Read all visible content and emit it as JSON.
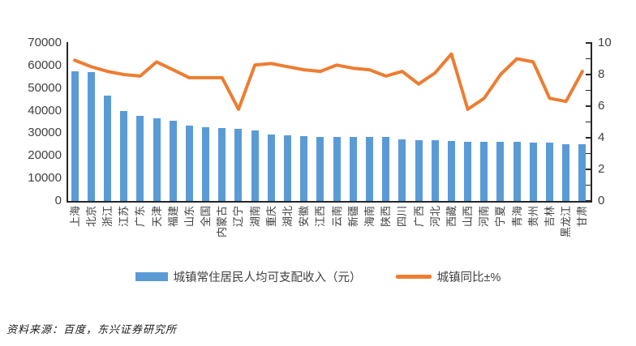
{
  "source_note": "资料来源：百度，东兴证券研究所",
  "chart_data": {
    "type": "bar",
    "subtype": "combo-bar-line-dual-axis",
    "title": "",
    "xlabel": "",
    "ylabel": "",
    "grid": false,
    "legend_position": "bottom",
    "categories": [
      "上海",
      "北京",
      "浙江",
      "江苏",
      "广东",
      "天津",
      "福建",
      "山东",
      "全国",
      "内蒙古",
      "辽宁",
      "湖南",
      "重庆",
      "湖北",
      "安徽",
      "江西",
      "云南",
      "新疆",
      "海南",
      "陕西",
      "四川",
      "广西",
      "河北",
      "西藏",
      "山西",
      "河南",
      "宁夏",
      "青海",
      "贵州",
      "吉林",
      "黑龙江",
      "甘肃"
    ],
    "series": [
      {
        "name": "城镇常住居民人均可支配收入（元）",
        "type": "bar",
        "axis": "left",
        "color": "#5B9BD5",
        "values": [
          57400,
          57000,
          46700,
          40000,
          37600,
          36700,
          35500,
          33400,
          32800,
          32300,
          32100,
          31200,
          29500,
          29100,
          28800,
          28500,
          28400,
          28300,
          28300,
          28200,
          27400,
          27000,
          26800,
          26600,
          26300,
          26200,
          26200,
          26100,
          26000,
          25900,
          25300,
          25200
        ]
      },
      {
        "name": "城镇同比±%",
        "type": "line",
        "axis": "right",
        "color": "#ED7D31",
        "values": [
          8.9,
          8.5,
          8.2,
          8.0,
          7.9,
          8.8,
          8.3,
          7.8,
          7.8,
          7.8,
          5.8,
          8.6,
          8.7,
          8.5,
          8.3,
          8.2,
          8.6,
          8.4,
          8.3,
          7.9,
          8.2,
          7.4,
          8.1,
          9.3,
          5.8,
          6.5,
          8.0,
          9.0,
          8.8,
          6.5,
          6.3,
          8.2
        ]
      }
    ],
    "left_axis": {
      "min": 0,
      "max": 70000,
      "step": 10000,
      "tick_labels": [
        "0",
        "10000",
        "20000",
        "30000",
        "40000",
        "50000",
        "60000",
        "70000"
      ]
    },
    "right_axis": {
      "min": 0,
      "max": 10,
      "label_step": 2,
      "minor_step": 1,
      "tick_labels": [
        "0",
        "2",
        "4",
        "6",
        "8",
        "10"
      ]
    }
  }
}
